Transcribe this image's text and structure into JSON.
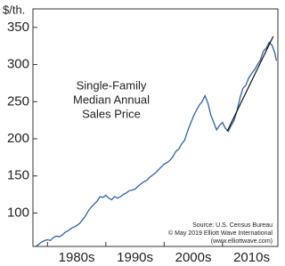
{
  "chart_data": {
    "type": "line",
    "y_label": "$/th.",
    "title_lines": [
      "Single-Family",
      "Median Annual",
      "Sales Price"
    ],
    "source_lines": [
      "Source: U.S. Census Bureau",
      "© May 2019 Elliott Wave International",
      "(www.elliottwave.com)"
    ],
    "color": "#2f62a0",
    "x": [
      1978,
      1978.5,
      1979,
      1979.5,
      1980,
      1980.5,
      1981,
      1981.5,
      1982,
      1982.5,
      1983,
      1983.5,
      1984,
      1984.5,
      1985,
      1985.5,
      1986,
      1986.5,
      1987,
      1987.5,
      1988,
      1988.5,
      1989,
      1989.5,
      1990,
      1990.5,
      1991,
      1991.5,
      1992,
      1992.5,
      1993,
      1993.5,
      1994,
      1994.5,
      1995,
      1995.5,
      1996,
      1996.5,
      1997,
      1997.5,
      1998,
      1998.5,
      1999,
      1999.5,
      2000,
      2000.5,
      2001,
      2001.5,
      2002,
      2002.5,
      2003,
      2003.5,
      2004,
      2004.5,
      2005,
      2005.5,
      2006,
      2006.5,
      2007,
      2007.5,
      2008,
      2008.5,
      2009,
      2009.5,
      2010,
      2010.5,
      2011,
      2011.5,
      2012,
      2012.5,
      2013,
      2013.5,
      2014,
      2014.5,
      2015,
      2015.5,
      2016,
      2016.5,
      2017,
      2017.5,
      2018,
      2018.5,
      2019,
      2019.25
    ],
    "values": [
      55,
      58,
      61,
      63,
      64,
      63,
      67,
      69,
      68,
      70,
      74,
      76,
      79,
      81,
      83,
      86,
      91,
      96,
      103,
      108,
      112,
      116,
      122,
      121,
      124,
      120,
      118,
      122,
      120,
      122,
      125,
      127,
      130,
      131,
      132,
      136,
      139,
      142,
      144,
      148,
      151,
      154,
      158,
      162,
      166,
      168,
      171,
      176,
      183,
      186,
      193,
      198,
      210,
      220,
      230,
      238,
      245,
      250,
      258,
      248,
      232,
      222,
      212,
      218,
      222,
      214,
      210,
      218,
      225,
      238,
      255,
      268,
      272,
      282,
      288,
      293,
      300,
      306,
      318,
      322,
      330,
      326,
      315,
      305
    ],
    "trendline": {
      "x": [
        2010.8,
        2018.7
      ],
      "values": [
        210,
        338
      ],
      "color": "#111111"
    },
    "xlim": [
      1977.5,
      2019.5
    ],
    "xticks": [
      {
        "value": 1985,
        "label": "1980s"
      },
      {
        "value": 1995,
        "label": "1990s"
      },
      {
        "value": 2005,
        "label": "2000s"
      },
      {
        "value": 2015,
        "label": "2010s"
      }
    ],
    "decade_ticks": [
      1980,
      1990,
      2000,
      2010
    ],
    "ylim": [
      55,
      375
    ],
    "yticks": [
      100,
      150,
      200,
      250,
      300,
      350
    ]
  }
}
